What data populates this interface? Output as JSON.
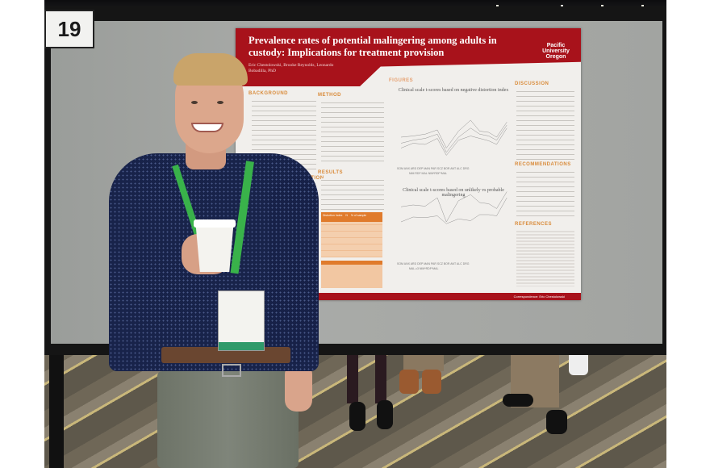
{
  "sign": {
    "number": "19"
  },
  "poster": {
    "title": "Prevalence rates of potential malingering among adults in custody: Implications for treatment provision",
    "authors": "Eric Chestolowski, Brooke Reynolds, Leonardo Bobadilla, PhD",
    "logo": "Pacific University Oregon",
    "sections": {
      "background": "BACKGROUND",
      "method": "METHOD",
      "results": "RESULTS",
      "distortion": "M DISTORTION",
      "figures": "FIGURES",
      "discussion": "DISCUSSION",
      "recommendations": "RECOMMENDATIONS",
      "references": "REFERENCES"
    },
    "chart1_title": "Clinical scale t-scores based on negative distortion index",
    "chart2_title": "Clinical scale t-scores based on unlikely vs probable malingering",
    "chart1_xlabels": "SOM ANX ARD DEP MAN PAR SCZ BOR ANT ALC DRG",
    "chart1_legend": "NIM   RDF   MAL   NIM*RDF*MAL",
    "chart2_legend": "MAL ≥3   NIM*RDF*MAL",
    "table_header": [
      "Distortion Index",
      "N",
      "% of sample"
    ],
    "footer": "Correspondence: Eric Chestolowski"
  },
  "colors": {
    "poster_red": "#a8121b",
    "section_orange": "#d98b3a",
    "lanyard_green": "#39b24a",
    "shirt_navy": "#18234a"
  }
}
